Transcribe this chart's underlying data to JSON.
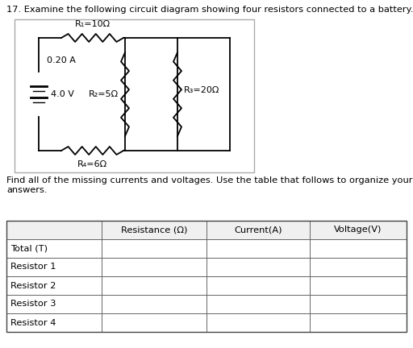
{
  "title": "17. Examine the following circuit diagram showing four resistors connected to a battery.",
  "r1_label": "R₁=10Ω",
  "r2_label": "R₂=5Ω",
  "r3_label": "R₃=20Ω",
  "r4_label": "R₄=6Ω",
  "current_label": "0.20 A",
  "voltage_label": "4.0 V",
  "find_text": "Find all of the missing currents and voltages. Use the table that follows to organize your\nanswers.",
  "table_headers": [
    "",
    "Resistance (Ω)",
    "Current(A)",
    "Voltage(V)"
  ],
  "table_rows": [
    "Total (T)",
    "Resistor 1",
    "Resistor 2",
    "Resistor 3",
    "Resistor 4"
  ],
  "bg_color": "#ffffff",
  "text_color": "#000000",
  "wire_color": "#000000"
}
